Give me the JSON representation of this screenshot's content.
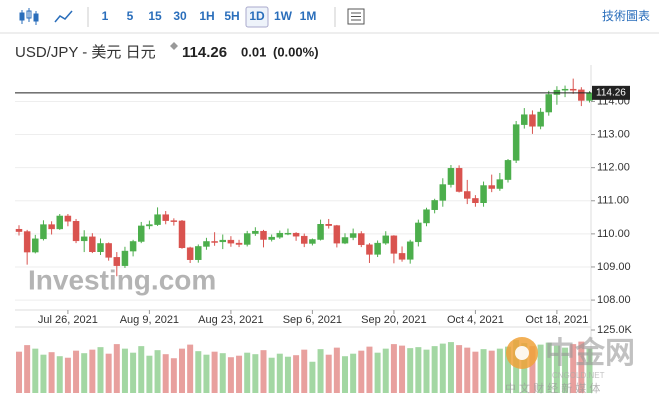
{
  "toolbar": {
    "buttons": [
      "1",
      "5",
      "15",
      "30",
      "1H",
      "5H",
      "1D",
      "1W",
      "1M"
    ],
    "active": 6,
    "right_link": "技術圖表"
  },
  "header": {
    "title": "USD/JPY - 美元 日元",
    "price": "114.26",
    "change": "0.01",
    "change_pct": "(0.00%)"
  },
  "watermarks": {
    "logo": "Investing.com",
    "site": "中金网",
    "site_en": "CNGOLD.NET",
    "slogan": "中 文 财 经 新 媒 体"
  },
  "chart_data": {
    "type": "candlestick",
    "categories": [
      null,
      null,
      null,
      null,
      null,
      null,
      "Jul 26, 2021",
      null,
      null,
      null,
      null,
      null,
      null,
      null,
      null,
      null,
      "Aug 9, 2021",
      null,
      null,
      null,
      null,
      null,
      null,
      null,
      null,
      null,
      "Aug 23, 2021",
      null,
      null,
      null,
      null,
      null,
      null,
      null,
      null,
      null,
      "Sep 6, 2021",
      null,
      null,
      null,
      null,
      null,
      null,
      null,
      null,
      null,
      "Sep 20, 2021",
      null,
      null,
      null,
      null,
      null,
      null,
      null,
      null,
      null,
      "Oct 4, 2021",
      null,
      null,
      null,
      null,
      null,
      null,
      null,
      null,
      null,
      "Oct 18, 2021",
      null,
      null,
      null,
      null
    ],
    "open": [
      110.14,
      110.07,
      109.45,
      109.85,
      110.28,
      110.15,
      110.54,
      110.38,
      109.79,
      109.91,
      109.46,
      109.71,
      109.29,
      109.04,
      109.48,
      109.77,
      110.24,
      110.28,
      110.58,
      110.4,
      110.39,
      109.58,
      109.22,
      109.62,
      109.77,
      109.76,
      109.81,
      109.72,
      109.68,
      110.01,
      110.08,
      109.83,
      109.9,
      110.02,
      110.02,
      109.93,
      109.71,
      109.83,
      110.29,
      110.25,
      109.72,
      109.89,
      110.01,
      109.67,
      109.38,
      109.72,
      109.94,
      109.41,
      109.23,
      109.76,
      110.33,
      110.73,
      111.01,
      111.49,
      111.98,
      111.28,
      111.07,
      110.94,
      111.46,
      111.37,
      111.64,
      112.22,
      113.3,
      113.6,
      113.25,
      113.68,
      114.21,
      114.34,
      114.37,
      114.35,
      114.03
    ],
    "high": [
      110.26,
      110.12,
      109.97,
      110.41,
      110.38,
      110.6,
      110.6,
      110.45,
      110.11,
      110.02,
      109.86,
      109.74,
      109.45,
      109.61,
      109.82,
      110.36,
      110.4,
      110.8,
      110.69,
      110.47,
      110.42,
      109.61,
      109.68,
      109.88,
      110.05,
      109.98,
      109.93,
      109.82,
      110.09,
      110.2,
      110.12,
      109.98,
      110.1,
      110.16,
      110.05,
      110.01,
      109.86,
      110.43,
      110.45,
      110.27,
      110.02,
      110.16,
      110.08,
      109.72,
      109.8,
      110.08,
      109.96,
      109.62,
      109.82,
      110.43,
      110.79,
      111.06,
      111.68,
      112.08,
      112.07,
      111.63,
      111.17,
      111.58,
      111.79,
      111.84,
      112.26,
      113.41,
      113.8,
      113.73,
      113.8,
      114.32,
      114.46,
      114.48,
      114.69,
      114.43,
      114.31
    ],
    "low": [
      109.95,
      109.07,
      109.41,
      109.8,
      109.98,
      110.12,
      110.23,
      109.72,
      109.45,
      109.42,
      109.36,
      109.19,
      108.72,
      108.97,
      109.32,
      109.72,
      110.14,
      110.24,
      110.29,
      110.25,
      109.55,
      109.12,
      109.13,
      109.52,
      109.64,
      109.54,
      109.61,
      109.6,
      109.62,
      109.94,
      109.59,
      109.77,
      109.85,
      109.96,
      109.79,
      109.6,
      109.65,
      109.8,
      110.16,
      109.59,
      109.69,
      109.81,
      109.6,
      109.12,
      109.3,
      109.67,
      109.11,
      109.16,
      109.1,
      109.62,
      110.23,
      110.62,
      110.82,
      111.4,
      111.25,
      110.9,
      110.82,
      110.82,
      111.26,
      111.3,
      111.55,
      112.14,
      113.18,
      113.02,
      113.16,
      113.57,
      113.9,
      114.13,
      114.23,
      113.86,
      113.97
    ],
    "close": [
      110.07,
      109.45,
      109.85,
      110.28,
      110.15,
      110.54,
      110.38,
      109.79,
      109.91,
      109.46,
      109.71,
      109.29,
      109.04,
      109.48,
      109.77,
      110.24,
      110.28,
      110.58,
      110.4,
      110.39,
      109.58,
      109.22,
      109.62,
      109.77,
      109.76,
      109.81,
      109.72,
      109.68,
      110.01,
      110.08,
      109.83,
      109.9,
      110.02,
      110.02,
      109.93,
      109.71,
      109.83,
      110.29,
      110.25,
      109.72,
      109.89,
      110.01,
      109.67,
      109.38,
      109.72,
      109.94,
      109.41,
      109.23,
      109.76,
      110.33,
      110.73,
      111.01,
      111.49,
      111.98,
      111.28,
      111.07,
      110.94,
      111.46,
      111.37,
      111.64,
      112.22,
      113.3,
      113.6,
      113.25,
      113.68,
      114.21,
      114.34,
      114.37,
      114.35,
      114.03,
      114.26
    ],
    "volume": [
      82000,
      95000,
      88000,
      76000,
      81000,
      73000,
      70000,
      84000,
      79000,
      86000,
      91000,
      78000,
      97000,
      88000,
      80000,
      93000,
      74000,
      85000,
      77000,
      69000,
      88000,
      96000,
      83000,
      76000,
      82000,
      79000,
      71000,
      74000,
      80000,
      77000,
      85000,
      70000,
      78000,
      72000,
      75000,
      86000,
      62000,
      87000,
      76000,
      90000,
      73000,
      78000,
      84000,
      92000,
      80000,
      88000,
      97000,
      94000,
      89000,
      91000,
      86000,
      93000,
      98000,
      101000,
      95000,
      90000,
      82000,
      87000,
      84000,
      88000,
      92000,
      105000,
      99000,
      93000,
      96000,
      100000,
      94000,
      90000,
      97000,
      102000,
      88000
    ],
    "up_color": "#4cae4c",
    "down_color": "#d9534f",
    "volume_up_color": "#a3d7a3",
    "volume_down_color": "#e8a09e",
    "ylim": [
      107.7,
      114.95
    ],
    "yticks": [
      {
        "value": 108,
        "label": "108.00"
      },
      {
        "value": 109,
        "label": "109.00"
      },
      {
        "value": 110,
        "label": "110.00"
      },
      {
        "value": 111,
        "label": "111.00"
      },
      {
        "value": 112,
        "label": "112.00"
      },
      {
        "value": 113,
        "label": "113.00"
      },
      {
        "value": 114,
        "label": "114.00"
      }
    ],
    "y2lim": [
      0,
      125000
    ],
    "y2ticks": [
      {
        "value": 125000,
        "label": "125.0K"
      }
    ],
    "last_price": 114.26,
    "grid": true
  }
}
